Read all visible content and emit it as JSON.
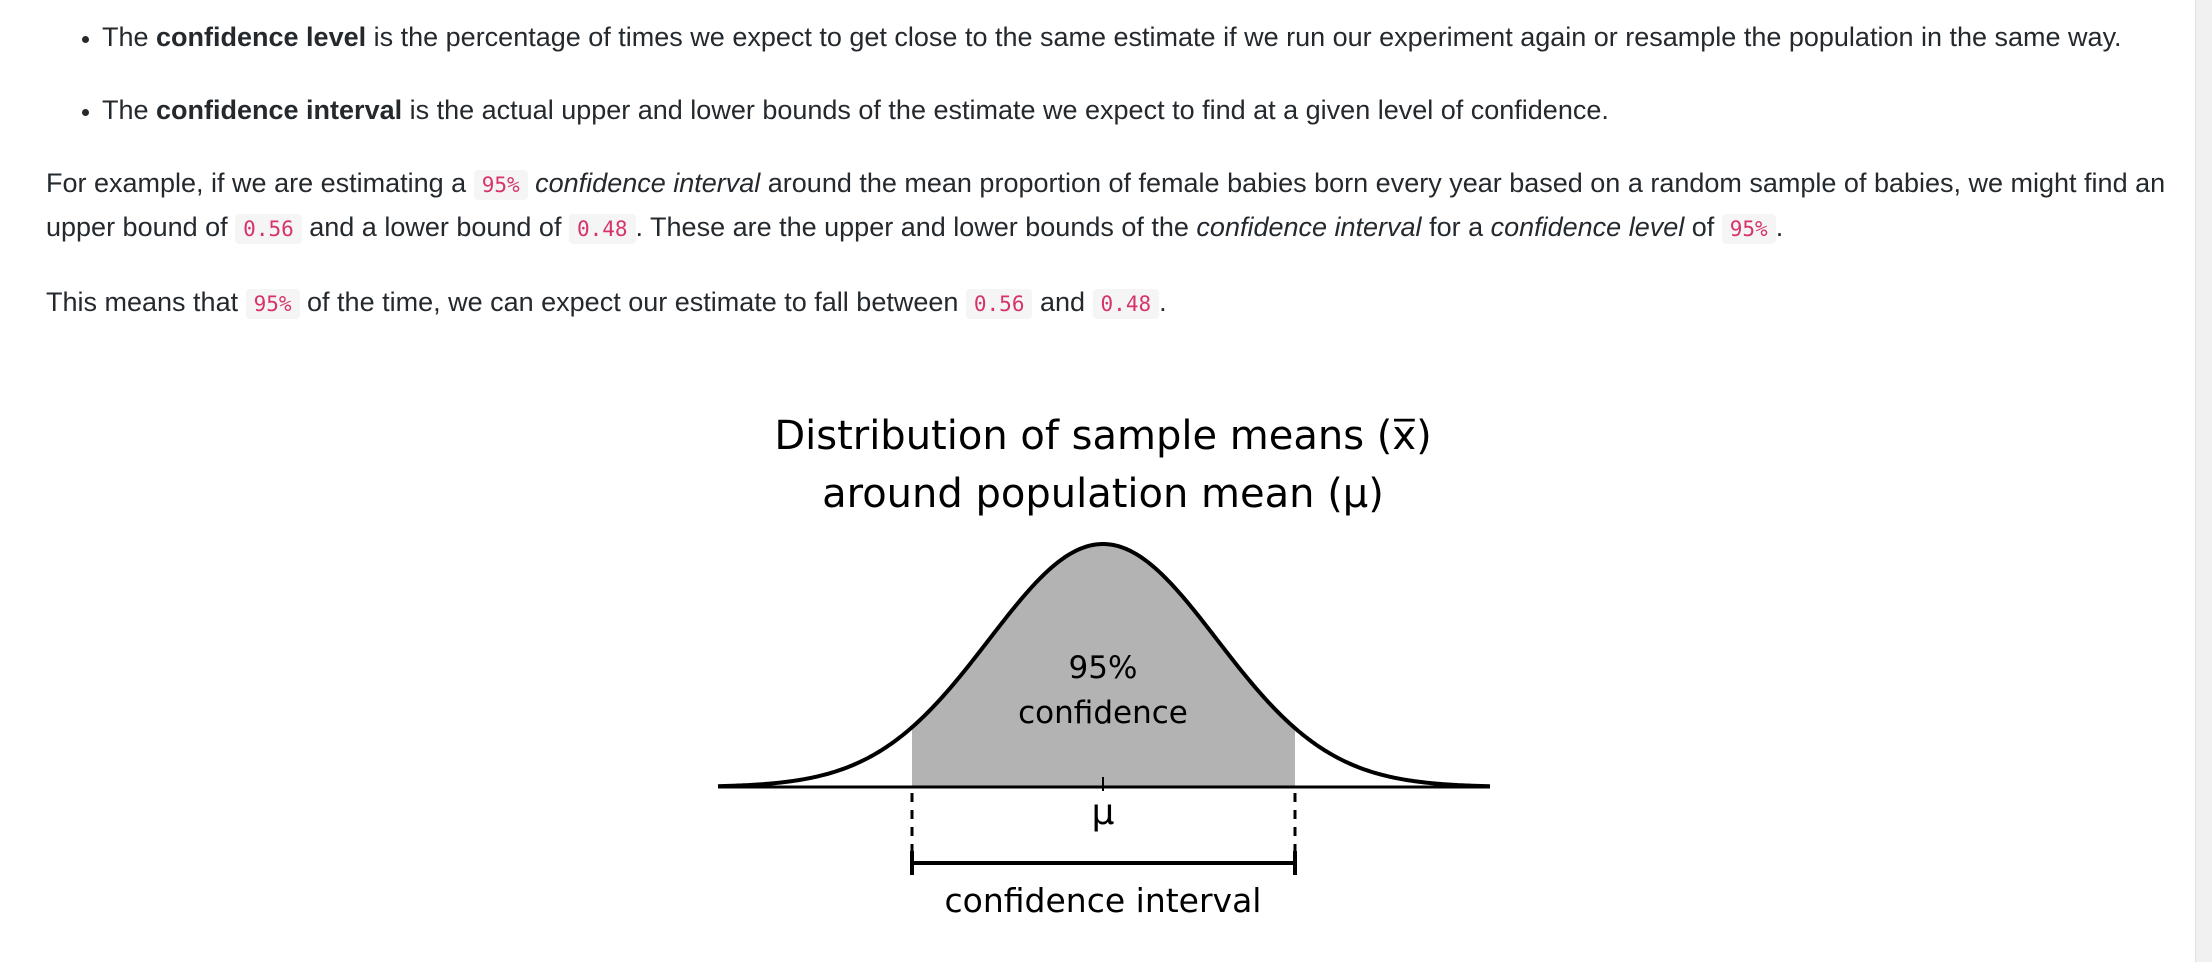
{
  "bullets": [
    {
      "pre": "The ",
      "bold": "confidence level",
      "post": " is the percentage of times we expect to get close to the same estimate if we run our experiment again or resample the population in the same way."
    },
    {
      "pre": "The ",
      "bold": "confidence interval",
      "post": " is the actual upper and lower bounds of the estimate we expect to find at a given level of confidence."
    }
  ],
  "example_paragraph": {
    "t1": "For example, if we are estimating a ",
    "c1": "95%",
    "t2": " ",
    "em1": "confidence interval",
    "t3": " around the mean proportion of female babies born every year based on a random sample of babies, we might find an upper bound of ",
    "c2": "0.56",
    "t4": " and a lower bound of ",
    "c3": "0.48",
    "t5": ". These are the upper and lower bounds of the ",
    "em2": "confidence interval",
    "t6": " for a ",
    "em3": "confidence level",
    "t7": " of ",
    "c4": "95%",
    "t8": "."
  },
  "means_paragraph": {
    "t1": "This means that ",
    "c1": "95%",
    "t2": " of the time, we can expect our estimate to fall between ",
    "c2": "0.56",
    "t3": " and ",
    "c3": "0.48",
    "t4": "."
  },
  "figure": {
    "title_line1": "Distribution of sample means (x̅)",
    "title_line2": "around population mean (μ)",
    "shaded_label_line1": "95%",
    "shaded_label_line2": "confidence",
    "mean_label": "μ",
    "interval_label": "confidence interval",
    "shade_color": "#b3b3b3",
    "line_color": "#000000"
  }
}
